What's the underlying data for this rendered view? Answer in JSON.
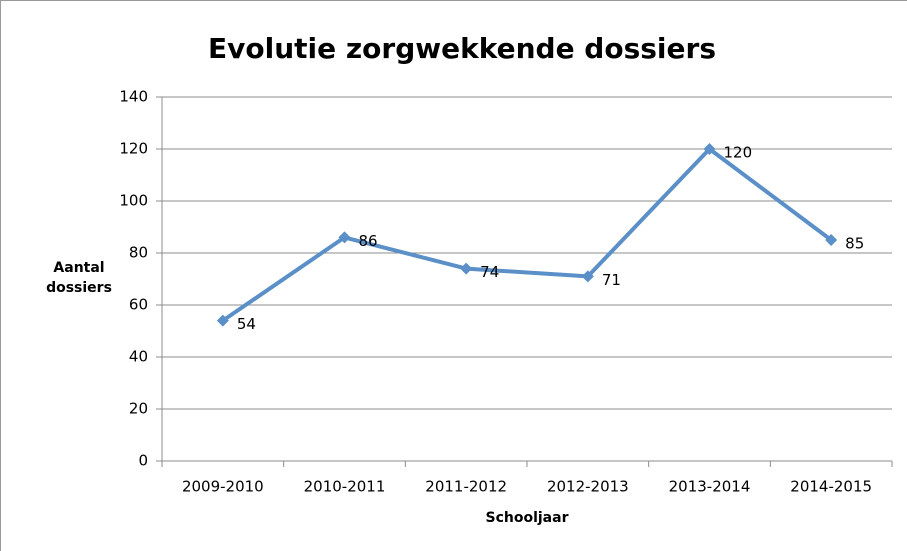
{
  "chart_data": {
    "type": "line",
    "title": "Evolutie zorgwekkende dossiers",
    "x_label": "Schooljaar",
    "y_label": "Aantal dossiers",
    "categories": [
      "2009-2010",
      "2010-2011",
      "2011-2012",
      "2012-2013",
      "2013-2014",
      "2014-2015"
    ],
    "series": [
      {
        "name": "Aantal dossiers",
        "color": "#5b8fc7",
        "values": [
          54,
          86,
          74,
          71,
          120,
          85
        ]
      }
    ],
    "ylim": [
      0,
      140
    ],
    "yticks": [
      0,
      20,
      40,
      60,
      80,
      100,
      120,
      140
    ],
    "grid": true,
    "data_labels": true
  }
}
